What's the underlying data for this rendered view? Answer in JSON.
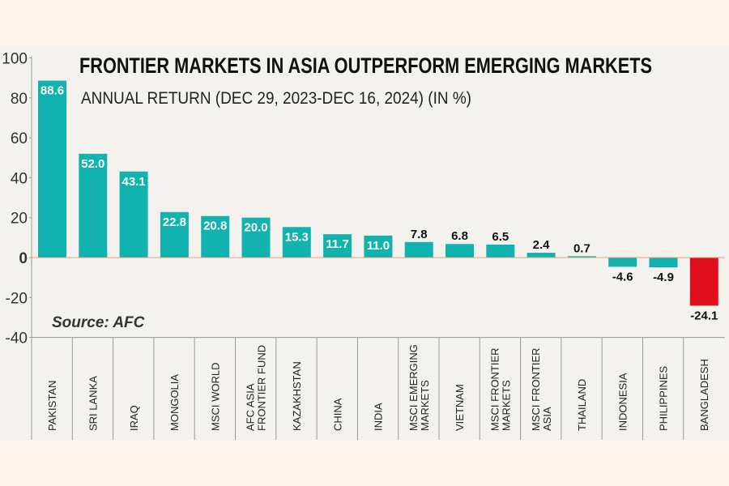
{
  "chart_data": {
    "type": "bar",
    "title": "FRONTIER MARKETS IN ASIA OUTPERFORM EMERGING MARKETS",
    "subtitle": "ANNUAL RETURN (DEC 29, 2023-DEC 16, 2024) (IN %)",
    "source": "Source: AFC",
    "xlabel": "",
    "ylabel": "",
    "ylim": [
      -40,
      100
    ],
    "yticks": [
      100,
      80,
      60,
      40,
      20,
      0,
      -20,
      -40
    ],
    "categories": [
      [
        "PAKISTAN"
      ],
      [
        "SRI LANKA"
      ],
      [
        "IRAQ"
      ],
      [
        "MONGOLIA"
      ],
      [
        "MSCI WORLD"
      ],
      [
        "AFC ASIA",
        "FRONTIER FUND"
      ],
      [
        "KAZAKHSTAN"
      ],
      [
        "CHINA"
      ],
      [
        "INDIA"
      ],
      [
        "MSCI EMERGING",
        "MARKETS"
      ],
      [
        "VIETNAM"
      ],
      [
        "MSCI FRONTIER",
        "MARKETS"
      ],
      [
        "MSCI FRONTIER",
        "ASIA"
      ],
      [
        "THAILAND"
      ],
      [
        "INDONESIA"
      ],
      [
        "PHILIPPINES"
      ],
      [
        "BANGLADESH"
      ]
    ],
    "values": [
      88.6,
      52.0,
      43.1,
      22.8,
      20.8,
      20.0,
      15.3,
      11.7,
      11.0,
      7.8,
      6.8,
      6.5,
      2.4,
      0.7,
      -4.6,
      -4.9,
      -24.1
    ],
    "value_labels": [
      "88.6",
      "52.0",
      "43.1",
      "22.8",
      "20.8",
      "20.0",
      "15.3",
      "11.7",
      "11.0",
      "7.8",
      "6.8",
      "6.5",
      "2.4",
      "0.7",
      "-4.6",
      "-4.9",
      "-24.1"
    ],
    "colors": {
      "bar": "#12b3ae",
      "highlight": "#e0101e",
      "zero": "#d7141e"
    }
  }
}
